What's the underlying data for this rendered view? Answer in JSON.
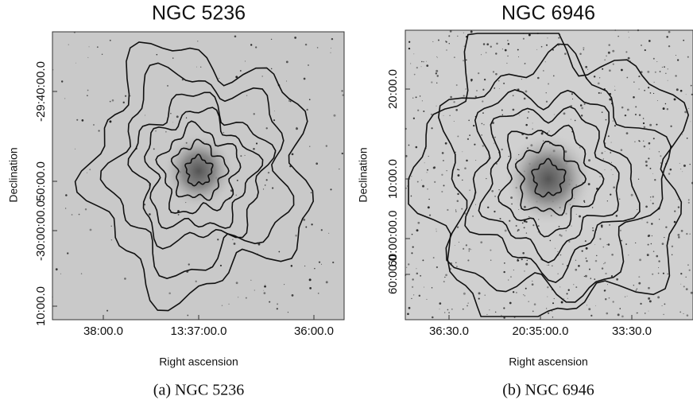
{
  "panels": [
    {
      "title": "NGC 5236",
      "xlabel": "Right ascension",
      "ylabel": "Declination",
      "xticks": [
        "38:00.0",
        "13:37:00.0",
        "36:00.0"
      ],
      "yticks": [
        "-29:40:00.0",
        "50:00.0",
        "-30:00:00.0",
        "10:00.0"
      ],
      "caption": "(a) NGC 5236"
    },
    {
      "title": "NGC 6946",
      "xlabel": "Right ascension",
      "ylabel": "Declination",
      "xticks": [
        "36:30.0",
        "20:35:00.0",
        "33:30.0"
      ],
      "yticks": [
        "20:00.0",
        "10:00.0",
        "60:00:00.0",
        "60:00.0"
      ],
      "caption": "(b) NGC 6946"
    }
  ]
}
